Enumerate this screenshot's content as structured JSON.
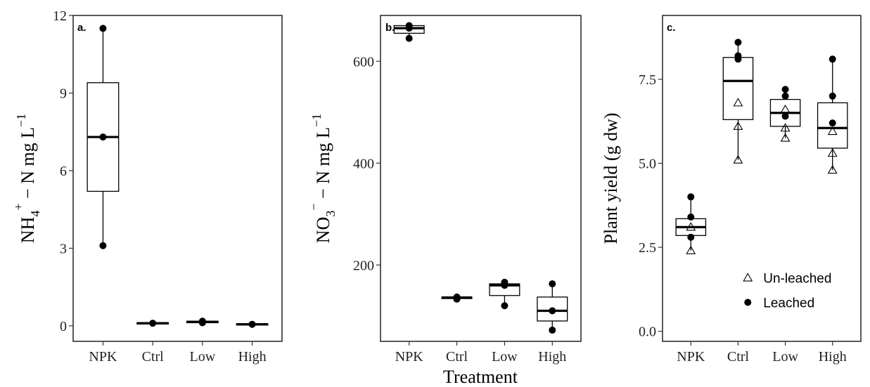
{
  "chart_data": [
    {
      "type": "boxplot",
      "tag": "a.",
      "ylabel": "NH4+ − N mg L−1",
      "ylim": [
        -0.6,
        12
      ],
      "yticks": [
        0,
        3,
        6,
        9,
        12
      ],
      "categories": [
        "NPK",
        "Ctrl",
        "Low",
        "High"
      ],
      "boxes": [
        {
          "category": "NPK",
          "q1": 5.2,
          "median": 7.3,
          "q3": 9.4,
          "whisker_low": 3.1,
          "whisker_high": 11.5
        },
        {
          "category": "Ctrl",
          "q1": 0.07,
          "median": 0.1,
          "q3": 0.12,
          "whisker_low": 0.07,
          "whisker_high": 0.12
        },
        {
          "category": "Low",
          "q1": 0.12,
          "median": 0.15,
          "q3": 0.18,
          "whisker_low": 0.12,
          "whisker_high": 0.18
        },
        {
          "category": "High",
          "q1": 0.03,
          "median": 0.06,
          "q3": 0.08,
          "whisker_low": 0.03,
          "whisker_high": 0.08
        }
      ],
      "points": [
        {
          "category": "NPK",
          "y": 11.5,
          "marker": "filled-circle"
        },
        {
          "category": "NPK",
          "y": 7.3,
          "marker": "filled-circle"
        },
        {
          "category": "NPK",
          "y": 3.1,
          "marker": "filled-circle"
        },
        {
          "category": "Ctrl",
          "y": 0.1,
          "marker": "filled-circle"
        },
        {
          "category": "Low",
          "y": 0.18,
          "marker": "filled-circle"
        },
        {
          "category": "Low",
          "y": 0.12,
          "marker": "filled-circle"
        },
        {
          "category": "High",
          "y": 0.06,
          "marker": "filled-circle"
        }
      ]
    },
    {
      "type": "boxplot",
      "tag": "b.",
      "ylabel": "NO3− − N mg L−1",
      "xlabel": "Treatment",
      "ylim": [
        50,
        690
      ],
      "yticks": [
        200,
        400,
        600
      ],
      "categories": [
        "NPK",
        "Ctrl",
        "Low",
        "High"
      ],
      "boxes": [
        {
          "category": "NPK",
          "q1": 655,
          "median": 665,
          "q3": 670,
          "whisker_low": 645,
          "whisker_high": 670
        },
        {
          "category": "Ctrl",
          "q1": 134,
          "median": 136,
          "q3": 137,
          "whisker_low": 132,
          "whisker_high": 138
        },
        {
          "category": "Low",
          "q1": 140,
          "median": 160,
          "q3": 163,
          "whisker_low": 120,
          "whisker_high": 166
        },
        {
          "category": "High",
          "q1": 90,
          "median": 110,
          "q3": 137,
          "whisker_low": 72,
          "whisker_high": 163
        }
      ],
      "points": [
        {
          "category": "NPK",
          "y": 670,
          "marker": "filled-circle"
        },
        {
          "category": "NPK",
          "y": 645,
          "marker": "filled-circle"
        },
        {
          "category": "NPK",
          "y": 665,
          "marker": "filled-circle"
        },
        {
          "category": "Ctrl",
          "y": 137,
          "marker": "filled-circle"
        },
        {
          "category": "Ctrl",
          "y": 133,
          "marker": "filled-circle"
        },
        {
          "category": "Low",
          "y": 166,
          "marker": "filled-circle"
        },
        {
          "category": "Low",
          "y": 160,
          "marker": "filled-circle"
        },
        {
          "category": "Low",
          "y": 120,
          "marker": "filled-circle"
        },
        {
          "category": "High",
          "y": 163,
          "marker": "filled-circle"
        },
        {
          "category": "High",
          "y": 110,
          "marker": "filled-circle"
        },
        {
          "category": "High",
          "y": 72,
          "marker": "filled-circle"
        }
      ]
    },
    {
      "type": "boxplot",
      "tag": "c.",
      "ylabel": "Plant yield (g dw)",
      "ylim": [
        -0.3,
        9.4
      ],
      "yticks": [
        0.0,
        2.5,
        5.0,
        7.5
      ],
      "ytick_labels": [
        "0.0",
        "2.5",
        "5.0",
        "7.5"
      ],
      "categories": [
        "NPK",
        "Ctrl",
        "Low",
        "High"
      ],
      "legend": {
        "position": "bottom-right",
        "entries": [
          {
            "label": "Un-leached",
            "marker": "open-triangle"
          },
          {
            "label": "Leached",
            "marker": "filled-circle"
          }
        ]
      },
      "boxes": [
        {
          "category": "NPK",
          "q1": 2.85,
          "median": 3.1,
          "q3": 3.35,
          "whisker_low": 2.4,
          "whisker_high": 4.0
        },
        {
          "category": "Ctrl",
          "q1": 6.3,
          "median": 7.45,
          "q3": 8.15,
          "whisker_low": 5.1,
          "whisker_high": 8.6
        },
        {
          "category": "Low",
          "q1": 6.1,
          "median": 6.5,
          "q3": 6.9,
          "whisker_low": 5.75,
          "whisker_high": 7.2
        },
        {
          "category": "High",
          "q1": 5.45,
          "median": 6.05,
          "q3": 6.8,
          "whisker_low": 4.8,
          "whisker_high": 8.1
        }
      ],
      "points": [
        {
          "category": "NPK",
          "y": 4.0,
          "marker": "filled-circle"
        },
        {
          "category": "NPK",
          "y": 3.4,
          "marker": "filled-circle"
        },
        {
          "category": "NPK",
          "y": 3.1,
          "marker": "open-triangle"
        },
        {
          "category": "NPK",
          "y": 2.8,
          "marker": "filled-circle"
        },
        {
          "category": "NPK",
          "y": 2.4,
          "marker": "open-triangle"
        },
        {
          "category": "Ctrl",
          "y": 8.6,
          "marker": "filled-circle"
        },
        {
          "category": "Ctrl",
          "y": 8.2,
          "marker": "filled-circle"
        },
        {
          "category": "Ctrl",
          "y": 8.1,
          "marker": "filled-circle"
        },
        {
          "category": "Ctrl",
          "y": 6.8,
          "marker": "open-triangle"
        },
        {
          "category": "Ctrl",
          "y": 6.1,
          "marker": "open-triangle"
        },
        {
          "category": "Ctrl",
          "y": 5.1,
          "marker": "open-triangle"
        },
        {
          "category": "Low",
          "y": 7.2,
          "marker": "filled-circle"
        },
        {
          "category": "Low",
          "y": 7.0,
          "marker": "filled-circle"
        },
        {
          "category": "Low",
          "y": 6.6,
          "marker": "open-triangle"
        },
        {
          "category": "Low",
          "y": 6.4,
          "marker": "filled-circle"
        },
        {
          "category": "Low",
          "y": 6.05,
          "marker": "open-triangle"
        },
        {
          "category": "Low",
          "y": 5.75,
          "marker": "open-triangle"
        },
        {
          "category": "High",
          "y": 8.1,
          "marker": "filled-circle"
        },
        {
          "category": "High",
          "y": 7.0,
          "marker": "filled-circle"
        },
        {
          "category": "High",
          "y": 6.2,
          "marker": "filled-circle"
        },
        {
          "category": "High",
          "y": 5.95,
          "marker": "open-triangle"
        },
        {
          "category": "High",
          "y": 5.3,
          "marker": "open-triangle"
        },
        {
          "category": "High",
          "y": 4.8,
          "marker": "open-triangle"
        }
      ]
    }
  ]
}
